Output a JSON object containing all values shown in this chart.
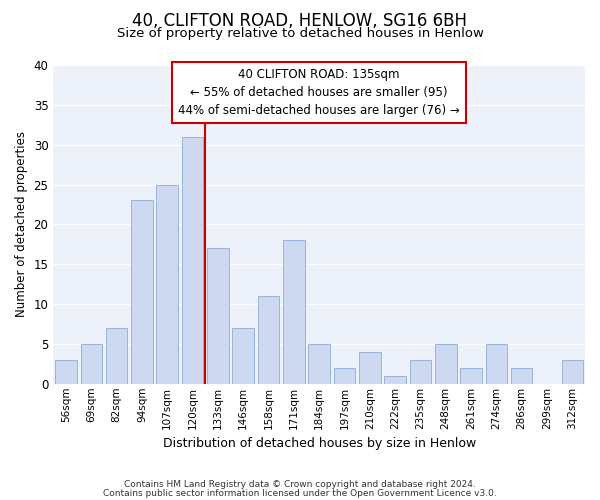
{
  "title": "40, CLIFTON ROAD, HENLOW, SG16 6BH",
  "subtitle": "Size of property relative to detached houses in Henlow",
  "xlabel": "Distribution of detached houses by size in Henlow",
  "ylabel": "Number of detached properties",
  "bar_color": "#ccd9f0",
  "bar_edgecolor": "#99b3d9",
  "categories": [
    "56sqm",
    "69sqm",
    "82sqm",
    "94sqm",
    "107sqm",
    "120sqm",
    "133sqm",
    "146sqm",
    "158sqm",
    "171sqm",
    "184sqm",
    "197sqm",
    "210sqm",
    "222sqm",
    "235sqm",
    "248sqm",
    "261sqm",
    "274sqm",
    "286sqm",
    "299sqm",
    "312sqm"
  ],
  "values": [
    3,
    5,
    7,
    23,
    25,
    31,
    17,
    7,
    11,
    18,
    5,
    2,
    4,
    1,
    3,
    5,
    2,
    5,
    2,
    0,
    3
  ],
  "ylim": [
    0,
    40
  ],
  "yticks": [
    0,
    5,
    10,
    15,
    20,
    25,
    30,
    35,
    40
  ],
  "vline_idx": 6,
  "vline_color": "#cc0000",
  "annotation_line1": "40 CLIFTON ROAD: 135sqm",
  "annotation_line2": "← 55% of detached houses are smaller (95)",
  "annotation_line3": "44% of semi-detached houses are larger (76) →",
  "footer1": "Contains HM Land Registry data © Crown copyright and database right 2024.",
  "footer2": "Contains public sector information licensed under the Open Government Licence v3.0.",
  "background_color": "#edf1fa",
  "grid_color": "#ffffff",
  "fig_bg": "#ffffff"
}
